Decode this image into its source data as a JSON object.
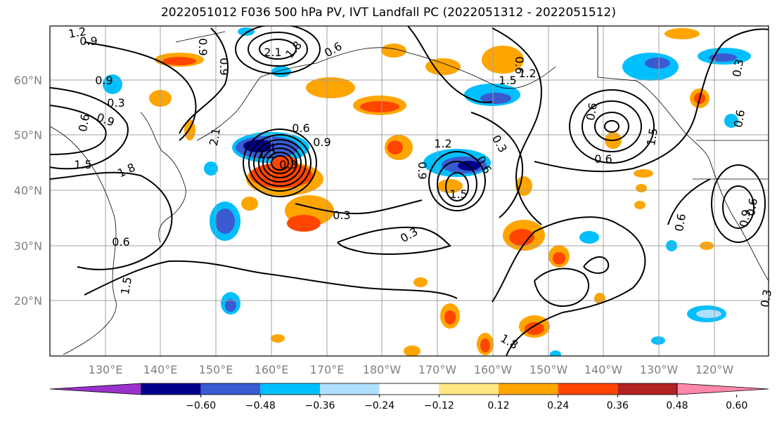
{
  "title": "2022051012 F036 500 hPa PV, IVT Landfall PC (2022051312 - 2022051512)",
  "lat_labels": [
    "60°N",
    "50°N",
    "40°N",
    "30°N",
    "20°N"
  ],
  "lon_labels": [
    "130°E",
    "140°E",
    "150°E",
    "160°E",
    "170°E",
    "180°W",
    "170°W",
    "160°W",
    "150°W",
    "140°W",
    "130°W",
    "120°W"
  ],
  "colorbar": {
    "ticks": [
      "−0.60",
      "−0.48",
      "−0.36",
      "−0.24",
      "−0.12",
      "0.12",
      "0.24",
      "0.36",
      "0.48",
      "0.60"
    ],
    "colors": [
      "#9932cc",
      "#00008b",
      "#3a5bd0",
      "#00bfff",
      "#b0e0ff",
      "#ffffff",
      "#ffe680",
      "#ffa500",
      "#ff4500",
      "#b22222",
      "#ff88aa"
    ]
  },
  "contour_labels": [
    "1.2",
    "0.9",
    "0.9",
    "2.1",
    "1.8",
    "0.6",
    "0.9",
    "0.6",
    "1.2",
    "1.5",
    "0.9",
    "0.3",
    "0.6",
    "0.9",
    "1.5",
    "1.8",
    "2.1",
    "0.6",
    "0.9",
    "1.2",
    "0.3",
    "0.6",
    "1.5",
    "1.2",
    "0.9",
    "1.5",
    "0.6",
    "0.3",
    "0.6",
    "0.3",
    "0.3",
    "0.6",
    "1.5",
    "1.8",
    "0.6",
    "0.6",
    "0.3",
    "0.6",
    "0.9",
    "0.3"
  ]
}
